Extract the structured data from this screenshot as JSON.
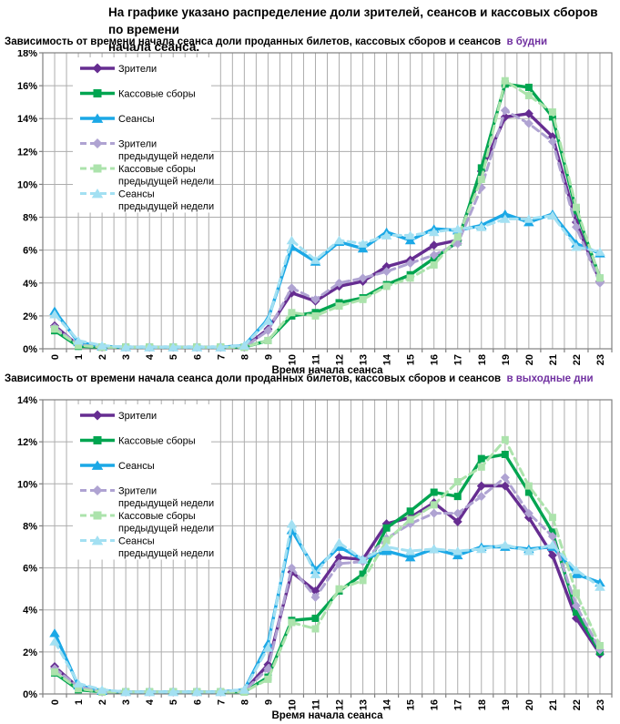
{
  "page": {
    "title_line1": "На графике указано распределение доли зрителей, сеансов и кассовых сборов по времени",
    "title_line2": "начала сеанса."
  },
  "colors": {
    "viewers": "#662D91",
    "box_office": "#00A550",
    "sessions": "#1BA8E6",
    "viewers_prev": "#AFA3D2",
    "box_office_prev": "#ACE3AC",
    "sessions_prev": "#A3E0F2",
    "subtitle_highlight": "#7030A0",
    "grid": "#ADADAD",
    "axis": "#808080",
    "text": "#000000"
  },
  "chart_data": [
    {
      "type": "line",
      "title": "Зависимость от времени начала сеанса доли проданных билетов, кассовых сборов и сеансов",
      "title_highlight": "в будни",
      "xlabel": "Время начала сеанса",
      "ylim": [
        0,
        18
      ],
      "ytick_step": 2,
      "grid_step": 2,
      "x": [
        0,
        1,
        2,
        3,
        4,
        5,
        6,
        7,
        8,
        9,
        10,
        11,
        12,
        13,
        14,
        15,
        16,
        17,
        18,
        19,
        20,
        21,
        22,
        23
      ],
      "legend_position": "top-left-inside",
      "series": [
        {
          "name": "Зрители",
          "legend_lines": [
            "Зрители"
          ],
          "color_key": "viewers",
          "marker": "diamond",
          "dash": false,
          "values": [
            1.4,
            0.2,
            0.1,
            0.1,
            0.1,
            0.1,
            0.1,
            0.1,
            0.1,
            1.2,
            3.4,
            2.9,
            3.8,
            4.1,
            5.0,
            5.4,
            6.3,
            6.6,
            10.8,
            14.1,
            14.3,
            12.9,
            7.7,
            4.1
          ]
        },
        {
          "name": "Кассовые сборы",
          "legend_lines": [
            "Кассовые сборы"
          ],
          "color_key": "box_office",
          "marker": "square",
          "dash": false,
          "values": [
            1.1,
            0.15,
            0.1,
            0.1,
            0.1,
            0.1,
            0.1,
            0.1,
            0.1,
            0.5,
            2.0,
            2.2,
            2.8,
            3.1,
            3.9,
            4.5,
            5.5,
            6.5,
            11.0,
            16.1,
            15.9,
            14.1,
            8.4,
            4.3
          ]
        },
        {
          "name": "Сеансы",
          "legend_lines": [
            "Сеансы"
          ],
          "color_key": "sessions",
          "marker": "triangle",
          "dash": false,
          "values": [
            2.3,
            0.4,
            0.15,
            0.1,
            0.1,
            0.1,
            0.1,
            0.1,
            0.2,
            1.8,
            6.2,
            5.3,
            6.5,
            6.1,
            7.1,
            6.6,
            7.3,
            7.2,
            7.5,
            8.2,
            7.7,
            8.2,
            6.4,
            5.8
          ]
        },
        {
          "name": "Зрители предыдущей недели",
          "legend_lines": [
            "Зрители",
            "предыдущей недели"
          ],
          "color_key": "viewers_prev",
          "marker": "diamond",
          "dash": true,
          "values": [
            1.3,
            0.25,
            0.1,
            0.1,
            0.1,
            0.1,
            0.1,
            0.1,
            0.1,
            1.1,
            3.7,
            3.0,
            4.0,
            4.3,
            4.7,
            5.2,
            5.7,
            6.4,
            9.8,
            14.5,
            13.7,
            12.6,
            7.4,
            4.0
          ]
        },
        {
          "name": "Кассовые сборы предыдущей недели",
          "legend_lines": [
            "Кассовые сборы",
            "предыдущей недели"
          ],
          "color_key": "box_office_prev",
          "marker": "square",
          "dash": true,
          "values": [
            1.2,
            0.2,
            0.1,
            0.1,
            0.1,
            0.1,
            0.1,
            0.1,
            0.1,
            0.5,
            2.2,
            2.0,
            2.6,
            3.0,
            3.8,
            4.3,
            5.1,
            6.8,
            10.3,
            16.3,
            15.4,
            14.4,
            8.6,
            4.3
          ]
        },
        {
          "name": "Сеансы предыдущей недели",
          "legend_lines": [
            "Сеансы",
            "предыдущей недели"
          ],
          "color_key": "sessions_prev",
          "marker": "triangle",
          "dash": true,
          "values": [
            2.1,
            0.5,
            0.2,
            0.1,
            0.1,
            0.1,
            0.1,
            0.1,
            0.2,
            1.7,
            6.6,
            5.4,
            6.6,
            6.4,
            6.9,
            6.9,
            7.1,
            7.3,
            7.4,
            7.9,
            7.9,
            8.1,
            6.2,
            5.9
          ]
        }
      ]
    },
    {
      "type": "line",
      "title": "Зависимость от времени начала сеанса доли проданных билетов, кассовых сборов и сеансов",
      "title_highlight": "в выходные дни",
      "xlabel": "Время начала сеанса",
      "ylim": [
        0,
        14
      ],
      "ytick_step": 2,
      "grid_step": 2,
      "x": [
        0,
        1,
        2,
        3,
        4,
        5,
        6,
        7,
        8,
        9,
        10,
        11,
        12,
        13,
        14,
        15,
        16,
        17,
        18,
        19,
        20,
        21,
        22,
        23
      ],
      "legend_position": "top-left-inside",
      "series": [
        {
          "name": "Зрители",
          "legend_lines": [
            "Зрители"
          ],
          "color_key": "viewers",
          "marker": "diamond",
          "dash": false,
          "values": [
            1.3,
            0.3,
            0.1,
            0.1,
            0.1,
            0.1,
            0.1,
            0.1,
            0.15,
            1.4,
            5.8,
            4.9,
            6.5,
            6.4,
            8.1,
            8.4,
            9.1,
            8.2,
            9.9,
            9.9,
            8.4,
            6.6,
            3.6,
            1.9
          ]
        },
        {
          "name": "Кассовые сборы",
          "legend_lines": [
            "Кассовые сборы"
          ],
          "color_key": "box_office",
          "marker": "square",
          "dash": false,
          "values": [
            1.0,
            0.2,
            0.1,
            0.1,
            0.1,
            0.1,
            0.1,
            0.1,
            0.1,
            0.8,
            3.5,
            3.6,
            4.9,
            5.7,
            7.9,
            8.7,
            9.6,
            9.4,
            11.2,
            11.4,
            9.6,
            7.7,
            3.9,
            2.0
          ]
        },
        {
          "name": "Сеансы",
          "legend_lines": [
            "Сеансы"
          ],
          "color_key": "sessions",
          "marker": "triangle",
          "dash": false,
          "values": [
            2.9,
            0.4,
            0.15,
            0.1,
            0.1,
            0.1,
            0.1,
            0.1,
            0.2,
            2.4,
            7.8,
            5.9,
            7.0,
            6.4,
            6.8,
            6.5,
            6.9,
            6.6,
            7.0,
            7.0,
            6.9,
            7.0,
            5.7,
            5.3
          ]
        },
        {
          "name": "Зрители предыдущей недели",
          "legend_lines": [
            "Зрители",
            "предыдущей недели"
          ],
          "color_key": "viewers_prev",
          "marker": "diamond",
          "dash": true,
          "values": [
            1.2,
            0.35,
            0.1,
            0.1,
            0.1,
            0.1,
            0.1,
            0.1,
            0.15,
            1.2,
            6.0,
            4.6,
            6.2,
            6.3,
            7.4,
            8.1,
            8.6,
            8.6,
            9.4,
            10.3,
            8.6,
            7.5,
            4.2,
            2.1
          ]
        },
        {
          "name": "Кассовые сборы предыдущей недели",
          "legend_lines": [
            "Кассовые сборы",
            "предыдущей недели"
          ],
          "color_key": "box_office_prev",
          "marker": "square",
          "dash": true,
          "values": [
            1.05,
            0.25,
            0.1,
            0.1,
            0.1,
            0.1,
            0.1,
            0.1,
            0.1,
            0.7,
            3.4,
            3.1,
            5.0,
            5.4,
            7.3,
            8.3,
            9.0,
            10.1,
            10.8,
            12.1,
            9.9,
            8.4,
            4.8,
            2.3
          ]
        },
        {
          "name": "Сеансы предыдущей недели",
          "legend_lines": [
            "Сеансы",
            "предыдущей недели"
          ],
          "color_key": "sessions_prev",
          "marker": "triangle",
          "dash": true,
          "values": [
            2.5,
            0.5,
            0.2,
            0.1,
            0.1,
            0.1,
            0.1,
            0.1,
            0.2,
            2.2,
            8.1,
            5.7,
            7.2,
            6.4,
            7.0,
            6.8,
            6.9,
            6.8,
            6.9,
            7.1,
            6.8,
            7.1,
            5.9,
            5.1
          ]
        }
      ]
    }
  ]
}
